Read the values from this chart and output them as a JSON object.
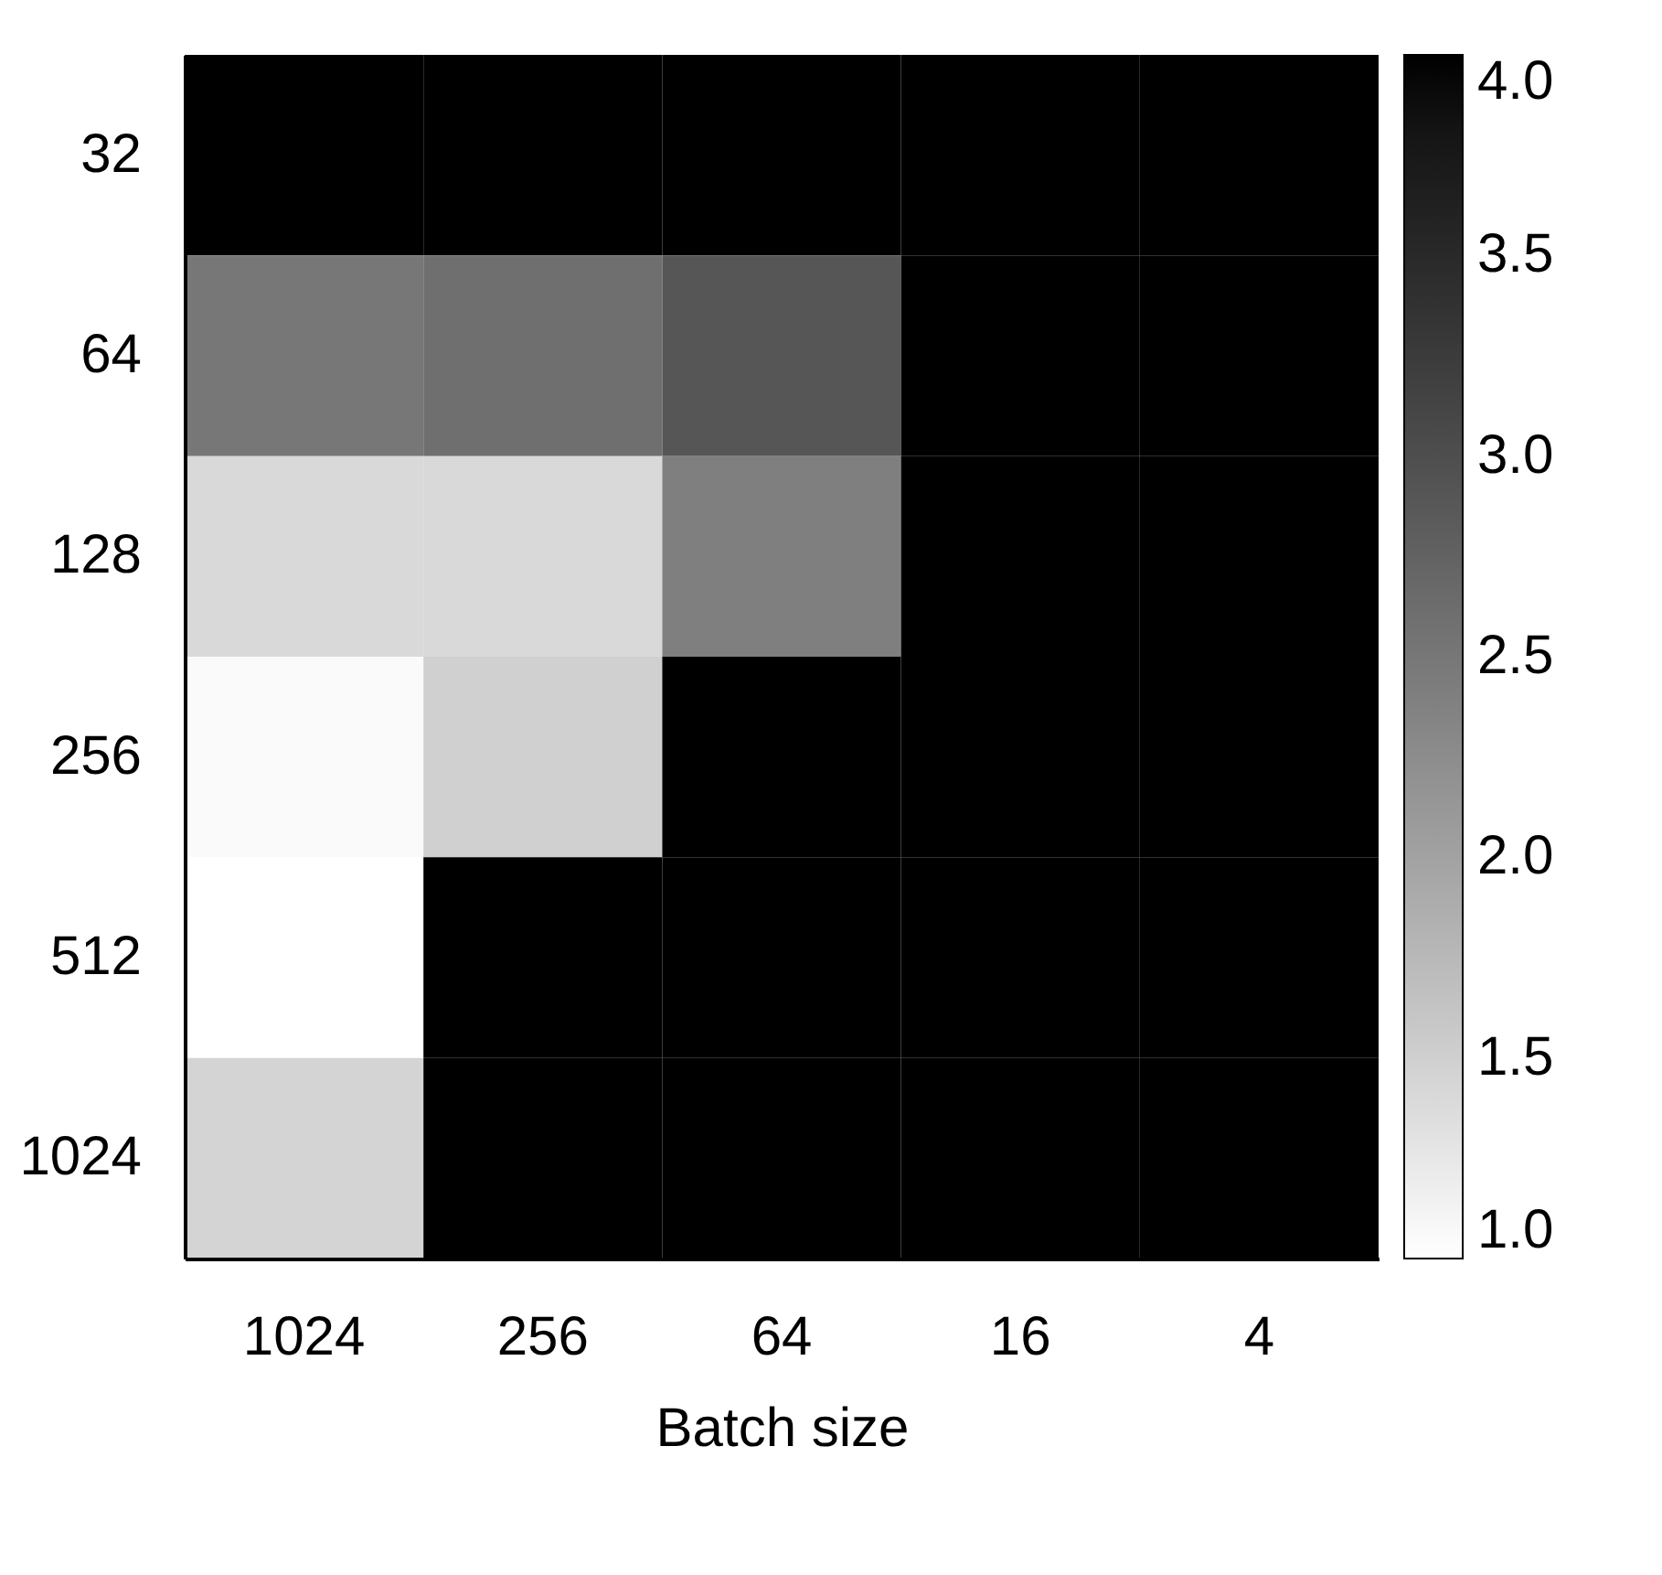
{
  "chart_data": {
    "type": "heatmap",
    "xlabel": "Batch size",
    "categories": [
      "1024",
      "256",
      "64",
      "16",
      "4"
    ],
    "y_categories": [
      "32",
      "64",
      "128",
      "256",
      "512",
      "1024"
    ],
    "cells": [
      [
        4.0,
        4.0,
        4.0,
        4.0,
        4.0
      ],
      [
        2.5,
        2.6,
        2.9,
        4.0,
        4.0
      ],
      [
        1.4,
        1.4,
        2.4,
        4.0,
        4.0
      ],
      [
        1.05,
        1.5,
        4.0,
        4.0,
        4.0
      ],
      [
        1.0,
        4.0,
        4.0,
        4.0,
        4.0
      ],
      [
        1.45,
        4.0,
        4.0,
        4.0,
        4.0
      ]
    ],
    "clim": [
      1.0,
      4.0
    ],
    "cticks": [
      {
        "value": 1,
        "label": "1.0"
      },
      {
        "value": 1.5,
        "label": "1.5"
      },
      {
        "value": 2,
        "label": "2.0"
      },
      {
        "value": 2.5,
        "label": "2.5"
      },
      {
        "value": 3,
        "label": "3.0"
      },
      {
        "value": 3.5,
        "label": "3.5"
      },
      {
        "value": 4,
        "label": "4.0"
      }
    ]
  }
}
